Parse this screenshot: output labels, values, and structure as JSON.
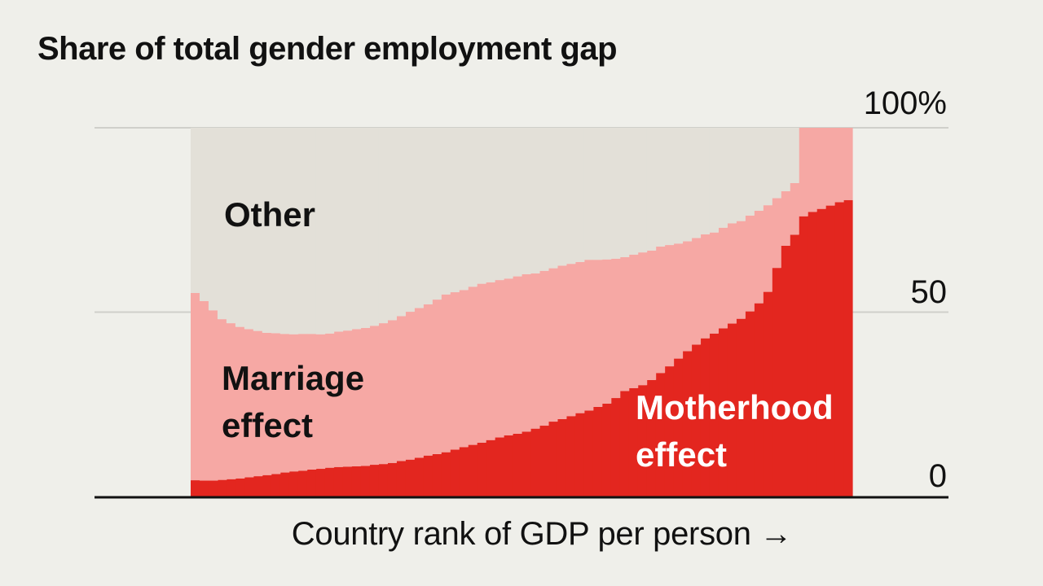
{
  "chart_data": {
    "type": "area",
    "title": "Share of total gender employment gap",
    "xlabel": "Country rank of GDP per person",
    "x_arrow": "→",
    "ylabel": "",
    "ylim": [
      0,
      100
    ],
    "y_ticks": [
      {
        "value": 0,
        "label": "0"
      },
      {
        "value": 50,
        "label": "50"
      },
      {
        "value": 100,
        "label": "100%"
      }
    ],
    "grid": true,
    "stacked": true,
    "series": [
      {
        "name": "Motherhood effect",
        "color": "#e3261f",
        "values": [
          4.4,
          4.3,
          4.3,
          4.5,
          4.7,
          4.9,
          5.2,
          5.5,
          5.8,
          6.1,
          6.5,
          6.8,
          7.0,
          7.3,
          7.5,
          7.8,
          8.0,
          8.1,
          8.2,
          8.3,
          8.6,
          8.8,
          9.1,
          9.6,
          10.0,
          10.5,
          11.1,
          11.5,
          12.0,
          12.7,
          13.4,
          14.0,
          14.6,
          15.3,
          16.0,
          16.6,
          17.0,
          17.6,
          18.4,
          19.2,
          20.3,
          21.0,
          21.8,
          22.6,
          23.3,
          24.3,
          25.2,
          26.7,
          28.6,
          29.4,
          30.2,
          31.6,
          33.5,
          35.3,
          37.4,
          39.4,
          41.2,
          42.9,
          44.2,
          45.6,
          46.9,
          48.2,
          50.2,
          52.4,
          55.5,
          62.0,
          68.0,
          71.0,
          76.0,
          77.2,
          78.0,
          78.9,
          79.8,
          80.4
        ]
      },
      {
        "name": "Marriage effect",
        "color": "#f6a8a4",
        "values": [
          50.8,
          48.7,
          46.2,
          43.6,
          42.3,
          41.1,
          40.2,
          39.4,
          38.6,
          38.2,
          37.6,
          37.2,
          37.1,
          36.8,
          36.5,
          36.4,
          36.7,
          36.9,
          37.2,
          37.4,
          37.7,
          38.2,
          38.7,
          39.3,
          40.1,
          40.6,
          41.0,
          41.9,
          42.8,
          42.7,
          42.6,
          42.9,
          43.1,
          42.8,
          42.7,
          42.5,
          42.7,
          42.7,
          42.1,
          42.0,
          41.6,
          41.6,
          41.3,
          41.0,
          40.9,
          39.9,
          39.1,
          37.8,
          36.3,
          36.2,
          36.0,
          35.1,
          34.3,
          32.9,
          31.2,
          29.8,
          28.9,
          28.2,
          27.4,
          27.3,
          27.2,
          26.5,
          26.0,
          25.1,
          23.5,
          18.9,
          14.8,
          14.0,
          24.0,
          22.8,
          22.0,
          21.1,
          20.2,
          19.6
        ]
      },
      {
        "name": "Other",
        "color": "#e3e0d8",
        "values": [
          44.8,
          47.0,
          49.5,
          51.9,
          53.0,
          54.0,
          54.6,
          55.1,
          55.6,
          55.7,
          55.9,
          56.0,
          55.9,
          55.9,
          56.0,
          55.8,
          55.3,
          55.0,
          54.6,
          54.3,
          53.7,
          53.0,
          52.2,
          51.1,
          49.9,
          48.9,
          47.9,
          46.6,
          45.2,
          44.6,
          44.0,
          43.1,
          42.3,
          41.9,
          41.3,
          40.9,
          40.3,
          39.7,
          39.5,
          38.8,
          38.1,
          37.4,
          36.9,
          36.4,
          35.8,
          35.8,
          35.7,
          35.5,
          35.1,
          34.4,
          33.8,
          33.3,
          32.2,
          31.8,
          31.4,
          30.8,
          29.9,
          28.9,
          28.4,
          27.1,
          25.9,
          25.3,
          23.8,
          22.5,
          21.0,
          19.1,
          17.2,
          15.0,
          0.0,
          0.0,
          0.0,
          0.0,
          0.0,
          0.0
        ]
      }
    ],
    "series_labels": [
      {
        "name": "Other",
        "lines": [
          "Other"
        ],
        "color": "#111111"
      },
      {
        "name": "Marriage effect",
        "lines": [
          "Marriage",
          "effect"
        ],
        "color": "#111111"
      },
      {
        "name": "Motherhood effect",
        "lines": [
          "Motherhood",
          "effect"
        ],
        "color": "#ffffff"
      }
    ],
    "colors": {
      "background": "#efefea",
      "grid": "#cfcfca",
      "baseline": "#111111",
      "text": "#111111"
    }
  }
}
